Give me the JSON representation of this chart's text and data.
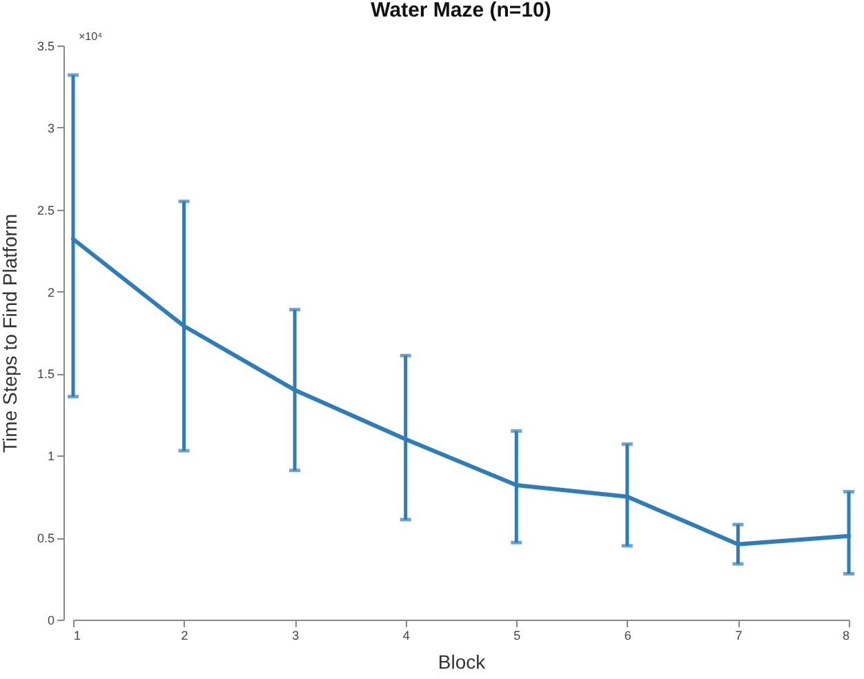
{
  "chart_data": {
    "type": "line",
    "title": "Water Maze (n=10)",
    "xlabel": "Block",
    "ylabel": "Time Steps to Find Platform",
    "x": [
      1,
      2,
      3,
      4,
      5,
      6,
      7,
      8
    ],
    "series": [
      {
        "color": "#2e7dbb",
        "values": [
          2.32,
          1.79,
          1.4,
          1.1,
          0.82,
          0.75,
          0.46,
          0.51
        ],
        "errors": [
          [
            1.36,
            3.32
          ],
          [
            1.03,
            2.55
          ],
          [
            0.91,
            1.89
          ],
          [
            0.61,
            1.61
          ],
          [
            0.47,
            1.15
          ],
          [
            0.45,
            1.07
          ],
          [
            0.34,
            0.58
          ],
          [
            0.28,
            0.78
          ]
        ]
      }
    ],
    "xlim": [
      1,
      8
    ],
    "xticks": [
      1,
      2,
      3,
      4,
      5,
      6,
      7,
      8
    ],
    "ylim": [
      0,
      3.5
    ],
    "yticks": [
      0,
      0.5,
      1,
      1.5,
      2,
      2.5,
      3,
      3.5
    ],
    "annotations": [
      "×10⁴"
    ],
    "grid": false,
    "marker": "none",
    "line_style": "solid"
  }
}
